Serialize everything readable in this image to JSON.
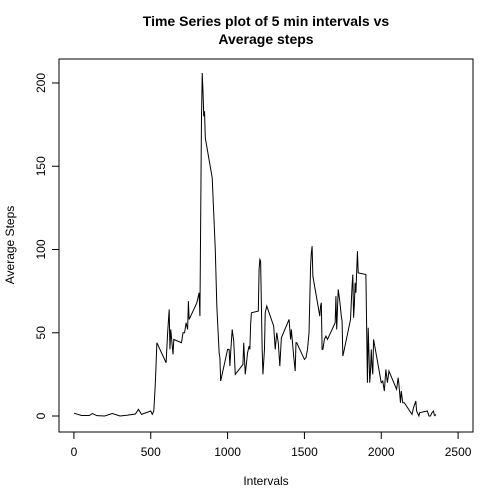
{
  "chart_data": {
    "type": "line",
    "title": [
      "Time Series plot of 5 min intervals vs",
      "Average steps"
    ],
    "xlabel": "Intervals",
    "ylabel": "Average Steps",
    "x": [
      0,
      50,
      100,
      120,
      150,
      200,
      250,
      300,
      350,
      400,
      420,
      440,
      500,
      510,
      520,
      530,
      540,
      550,
      600,
      610,
      620,
      625,
      630,
      645,
      650,
      700,
      710,
      720,
      730,
      740,
      745,
      750,
      800,
      815,
      820,
      830,
      835,
      840,
      845,
      850,
      855,
      900,
      920,
      930,
      945,
      950,
      955,
      1000,
      1010,
      1015,
      1020,
      1030,
      1040,
      1050,
      1100,
      1105,
      1115,
      1130,
      1140,
      1145,
      1150,
      1155,
      1200,
      1205,
      1210,
      1215,
      1225,
      1230,
      1240,
      1245,
      1255,
      1300,
      1310,
      1320,
      1330,
      1340,
      1350,
      1400,
      1410,
      1415,
      1430,
      1440,
      1445,
      1450,
      1500,
      1510,
      1520,
      1530,
      1540,
      1545,
      1550,
      1555,
      1600,
      1605,
      1610,
      1615,
      1620,
      1630,
      1640,
      1650,
      1700,
      1705,
      1710,
      1720,
      1730,
      1740,
      1745,
      1750,
      1755,
      1800,
      1805,
      1810,
      1815,
      1820,
      1825,
      1830,
      1835,
      1845,
      1850,
      1900,
      1910,
      1915,
      1920,
      1925,
      1930,
      1935,
      1940,
      1945,
      1950,
      2000,
      2010,
      2020,
      2030,
      2040,
      2050,
      2100,
      2110,
      2115,
      2125,
      2130,
      2140,
      2150,
      2200,
      2210,
      2225,
      2230,
      2235,
      2245,
      2250,
      2300,
      2310,
      2320,
      2330,
      2340,
      2345,
      2350,
      2355
    ],
    "series": [
      {
        "name": "Average Steps",
        "color": "#000000",
        "values": [
          1.7,
          0.3,
          0.3,
          1.5,
          0.2,
          0,
          1.5,
          0,
          0.5,
          1.2,
          4,
          1,
          3,
          1,
          3,
          20,
          44,
          42,
          32,
          50,
          64,
          40,
          52,
          37,
          46,
          44,
          50,
          50,
          56,
          52,
          69,
          58,
          68,
          74,
          60,
          177,
          206,
          195,
          180,
          183,
          167,
          143,
          100,
          66,
          38,
          35,
          21,
          40,
          40,
          30,
          38,
          52,
          45,
          25,
          31,
          44,
          25,
          38,
          42,
          40,
          55,
          62,
          63,
          88,
          94,
          93,
          40,
          25,
          40,
          62,
          66,
          54,
          40,
          50,
          44,
          30,
          47,
          58,
          46,
          52,
          36,
          27,
          44,
          44,
          34,
          35,
          40,
          50,
          90,
          98,
          102,
          84,
          60,
          66,
          68,
          40,
          40,
          46,
          48,
          46,
          56,
          72,
          52,
          76,
          69,
          60,
          57,
          36,
          38,
          58,
          68,
          78,
          85,
          59,
          67,
          80,
          74,
          99,
          86,
          85,
          20,
          53,
          37,
          20,
          27,
          40,
          30,
          25,
          46,
          20,
          21,
          15,
          28,
          20,
          27,
          16,
          23,
          19,
          8,
          15,
          8,
          8,
          1,
          5,
          9,
          3,
          2,
          0,
          2,
          3,
          0,
          0,
          2,
          3,
          0.6,
          0.2,
          1
        ]
      }
    ],
    "xlim": [
      -97,
      2597
    ],
    "ylim": [
      -9.6,
      214.4
    ],
    "xticks": [
      0,
      500,
      1000,
      1500,
      2000,
      2500
    ],
    "yticks": [
      0,
      50,
      100,
      150,
      200
    ]
  }
}
